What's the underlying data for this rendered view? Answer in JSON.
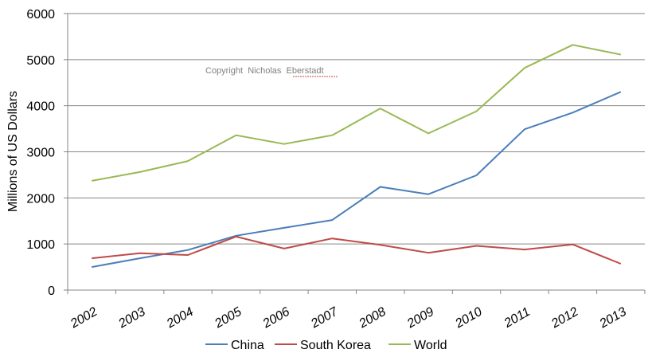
{
  "chart_data": {
    "type": "line",
    "title": "",
    "xlabel": "",
    "ylabel": "Millions of US Dollars",
    "categories": [
      "2002",
      "2003",
      "2004",
      "2005",
      "2006",
      "2007",
      "2008",
      "2009",
      "2010",
      "2011",
      "2012",
      "2013"
    ],
    "ylim": [
      0,
      6000
    ],
    "yticks": [
      0,
      1000,
      2000,
      3000,
      4000,
      5000,
      6000
    ],
    "grid": true,
    "legend_position": "bottom",
    "annotation": "Copyright  Nicholas  Eberstadt",
    "series": [
      {
        "name": "China",
        "color": "#4a7ebb",
        "values": [
          500,
          690,
          870,
          1180,
          1350,
          1520,
          2240,
          2080,
          2490,
          3490,
          3850,
          4300
        ]
      },
      {
        "name": "South Korea",
        "color": "#be4b48",
        "values": [
          690,
          800,
          760,
          1160,
          900,
          1120,
          980,
          810,
          960,
          880,
          990,
          570
        ]
      },
      {
        "name": "World",
        "color": "#98b954",
        "values": [
          2370,
          2560,
          2800,
          3360,
          3170,
          3360,
          3940,
          3400,
          3880,
          4820,
          5320,
          5110
        ]
      }
    ]
  }
}
